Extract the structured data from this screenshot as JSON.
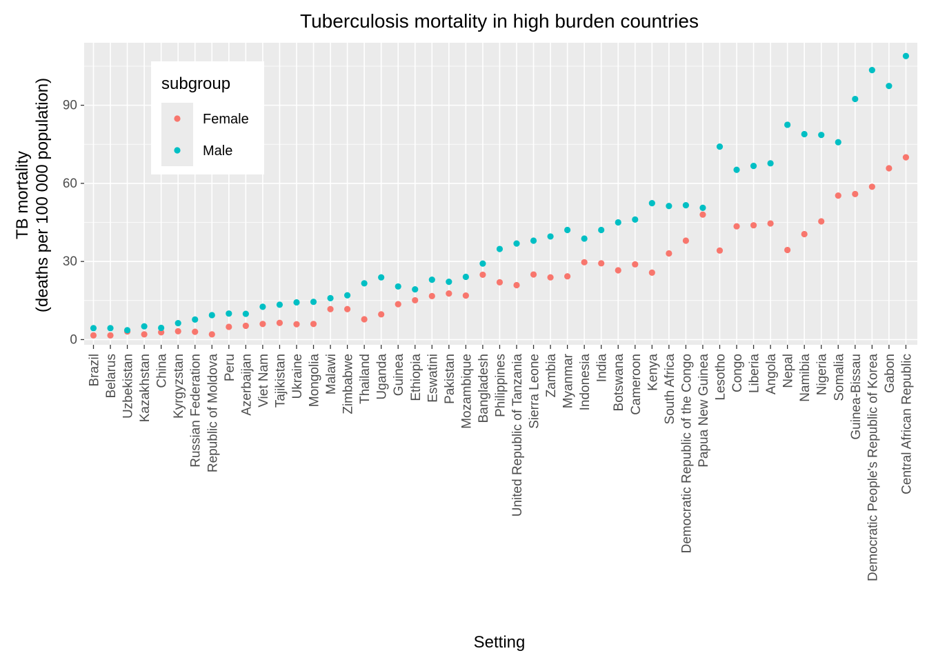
{
  "chart_data": {
    "type": "scatter",
    "title": "Tuberculosis mortality in high burden countries",
    "xlabel": "Setting",
    "ylabel_lines": [
      "TB mortality",
      "(deaths per 100 000 population)"
    ],
    "ylim": [
      -2,
      114
    ],
    "yticks": [
      0,
      30,
      60,
      90
    ],
    "grid": true,
    "legend": {
      "title": "subgroup",
      "position": "top-left"
    },
    "categories": [
      "Brazil",
      "Belarus",
      "Uzbekistan",
      "Kazakhstan",
      "China",
      "Kyrgyzstan",
      "Russian Federation",
      "Republic of Moldova",
      "Peru",
      "Azerbaijan",
      "Viet Nam",
      "Tajikistan",
      "Ukraine",
      "Mongolia",
      "Malawi",
      "Zimbabwe",
      "Thailand",
      "Uganda",
      "Guinea",
      "Ethiopia",
      "Eswatini",
      "Pakistan",
      "Mozambique",
      "Bangladesh",
      "Philippines",
      "United Republic of Tanzania",
      "Sierra Leone",
      "Zambia",
      "Myanmar",
      "Indonesia",
      "India",
      "Botswana",
      "Cameroon",
      "Kenya",
      "South Africa",
      "Democratic Republic of the Congo",
      "Papua New Guinea",
      "Lesotho",
      "Congo",
      "Liberia",
      "Angola",
      "Nepal",
      "Namibia",
      "Nigeria",
      "Somalia",
      "Guinea-Bissau",
      "Democratic People's Republic of Korea",
      "Gabon",
      "Central African Republic"
    ],
    "series": [
      {
        "name": "Female",
        "color": "#F8766D",
        "values": [
          1.6,
          1.6,
          3.1,
          2.0,
          2.8,
          3.2,
          3.0,
          2.0,
          4.9,
          5.3,
          6.0,
          6.4,
          5.9,
          6.0,
          11.7,
          11.7,
          7.8,
          9.7,
          13.6,
          15.1,
          16.7,
          17.7,
          16.9,
          24.9,
          22.0,
          20.9,
          25.0,
          23.9,
          24.3,
          29.7,
          29.3,
          26.6,
          28.9,
          25.7,
          33.1,
          38.0,
          48.0,
          34.2,
          43.5,
          43.9,
          44.6,
          34.4,
          40.5,
          45.4,
          55.3,
          55.9,
          58.7,
          65.8,
          70.0
        ]
      },
      {
        "name": "Male",
        "color": "#00BFC4",
        "values": [
          4.4,
          4.4,
          3.6,
          5.1,
          4.5,
          6.3,
          7.7,
          9.4,
          10.0,
          9.9,
          12.6,
          13.4,
          14.3,
          14.5,
          15.9,
          17.0,
          21.6,
          23.9,
          20.4,
          19.3,
          23.0,
          22.2,
          24.1,
          29.2,
          34.8,
          36.9,
          38.0,
          39.6,
          42.1,
          38.8,
          42.1,
          45.0,
          46.1,
          52.4,
          51.3,
          51.6,
          50.6,
          74.1,
          65.2,
          66.7,
          67.7,
          82.5,
          78.9,
          78.6,
          75.8,
          92.4,
          103.5,
          97.4,
          108.9
        ]
      }
    ]
  }
}
